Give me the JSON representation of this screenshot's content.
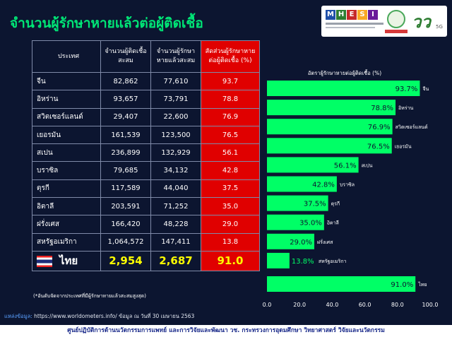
{
  "page_title": "จำนวนผู้รักษาหายแล้วต่อผู้ติดเชื้อ",
  "logos": {
    "mhesi_letters": [
      "M",
      "H",
      "E",
      "S",
      "I"
    ],
    "mhesi_colors": [
      "#1f4fa8",
      "#2e7d32",
      "#c62828",
      "#f9a825",
      "#6a1b9a"
    ],
    "brand_digits": "วว",
    "brand_sub": "5G"
  },
  "table": {
    "headers": [
      "ประเทศ",
      "จำนวนผู้ติดเชื้อสะสม",
      "จำนวนผู้รักษาหายแล้วสะสม",
      "สัดส่วนผู้รักษาหายต่อผู้ติดเชื้อ (%)"
    ],
    "rows": [
      {
        "country": "จีน",
        "infected": "82,862",
        "recovered": "77,610",
        "pct": "93.7"
      },
      {
        "country": "อิหร่าน",
        "infected": "93,657",
        "recovered": "73,791",
        "pct": "78.8"
      },
      {
        "country": "สวิตเซอร์แลนด์",
        "infected": "29,407",
        "recovered": "22,600",
        "pct": "76.9"
      },
      {
        "country": "เยอรมัน",
        "infected": "161,539",
        "recovered": "123,500",
        "pct": "76.5"
      },
      {
        "country": "สเปน",
        "infected": "236,899",
        "recovered": "132,929",
        "pct": "56.1"
      },
      {
        "country": "บราซิล",
        "infected": "79,685",
        "recovered": "34,132",
        "pct": "42.8"
      },
      {
        "country": "ตุรกี",
        "infected": "117,589",
        "recovered": "44,040",
        "pct": "37.5"
      },
      {
        "country": "อิตาลี",
        "infected": "203,591",
        "recovered": "71,252",
        "pct": "35.0"
      },
      {
        "country": "ฝรั่งเศส",
        "infected": "166,420",
        "recovered": "48,228",
        "pct": "29.0"
      },
      {
        "country": "สหรัฐอเมริกา",
        "infected": "1,064,572",
        "recovered": "147,411",
        "pct": "13.8"
      }
    ],
    "thai": {
      "country": "ไทย",
      "infected": "2,954",
      "recovered": "2,687",
      "pct": "91.0"
    }
  },
  "note": "(*อันดับจัดจากประเทศที่มีผู้รักษาหายแล้วสะสมสูงสุด)",
  "source": {
    "label": "แหล่งข้อมูล:",
    "text": " https://www.worldometers.info/ ข้อมูล ณ วันที่ 30 เมษายน 2563"
  },
  "footer": "ศูนย์ปฏิบัติการด้านนวัตกรรมการแพทย์ และการวิจัยและพัฒนา วช.   กระทรวงการอุดมศึกษา วิทยาศาสตร์ วิจัยและนวัตกรรม",
  "chart_data": {
    "type": "bar",
    "orientation": "horizontal",
    "title": "อัตราผู้รักษาหายต่อผู้ติดเชื้อ (%)",
    "categories": [
      "จีน",
      "อิหร่าน",
      "สวิตเซอร์แลนด์",
      "เยอรมัน",
      "สเปน",
      "บราซิล",
      "ตุรกี",
      "อิตาลี",
      "ฝรั่งเศส",
      "สหรัฐอเมริกา",
      "ไทย"
    ],
    "values": [
      93.7,
      78.8,
      76.9,
      76.5,
      56.1,
      42.8,
      37.5,
      35.0,
      29.0,
      13.8,
      91.0
    ],
    "data_labels": [
      "93.7%",
      "78.8%",
      "76.9%",
      "76.5%",
      "56.1%",
      "42.8%",
      "37.5%",
      "35.0%",
      "29.0%",
      "13.8%",
      "91.0%"
    ],
    "xlim": [
      0,
      100
    ],
    "xticks": [
      "0.0",
      "20.0",
      "40.0",
      "60.0",
      "80.0",
      "100.0"
    ],
    "bar_color": "#00ff66",
    "grid": false
  }
}
